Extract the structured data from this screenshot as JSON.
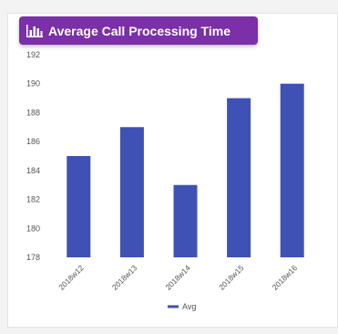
{
  "header": {
    "title": "Average Call Processing Time",
    "icon": "bar-chart-icon",
    "background": "#7b2fa8"
  },
  "chart_data": {
    "type": "bar",
    "categories": [
      "2018w12",
      "2018w13",
      "2018w14",
      "2018w15",
      "2018w16"
    ],
    "series": [
      {
        "name": "Avg",
        "values": [
          185,
          187,
          183,
          189,
          190
        ],
        "color": "#3f51b5"
      }
    ],
    "yticks": [
      178,
      180,
      182,
      184,
      186,
      188,
      190,
      192
    ],
    "ylim": [
      178,
      192
    ],
    "legend_position": "bottom",
    "grid": false
  }
}
